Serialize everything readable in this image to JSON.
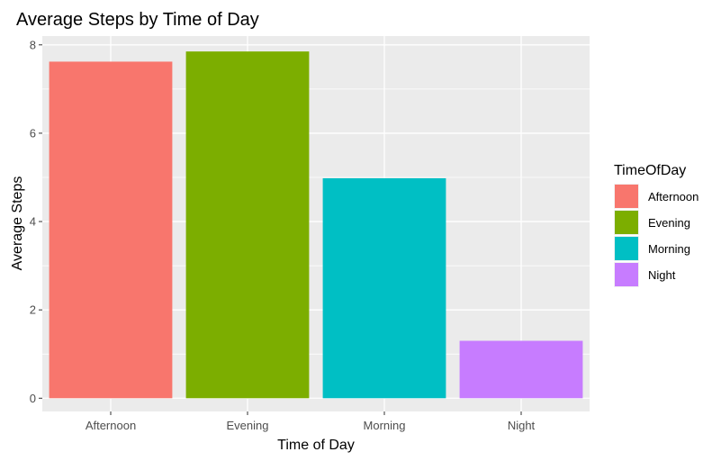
{
  "chart_data": {
    "type": "bar",
    "title": "Average Steps by Time of Day",
    "xlabel": "Time of Day",
    "ylabel": "Average Steps",
    "categories": [
      "Afternoon",
      "Evening",
      "Morning",
      "Night"
    ],
    "values": [
      7.62,
      7.85,
      4.98,
      1.3
    ],
    "colors": [
      "#F8766D",
      "#7CAE00",
      "#00BFC4",
      "#C77CFF"
    ],
    "ylim": [
      -0.3,
      8.2
    ],
    "yticks": [
      0,
      2,
      4,
      6,
      8
    ],
    "grid": true,
    "panel_background": "#EBEBEB",
    "grid_color": "#FFFFFF",
    "legend": {
      "title": "TimeOfDay",
      "position": "right",
      "items": [
        "Afternoon",
        "Evening",
        "Morning",
        "Night"
      ]
    }
  }
}
